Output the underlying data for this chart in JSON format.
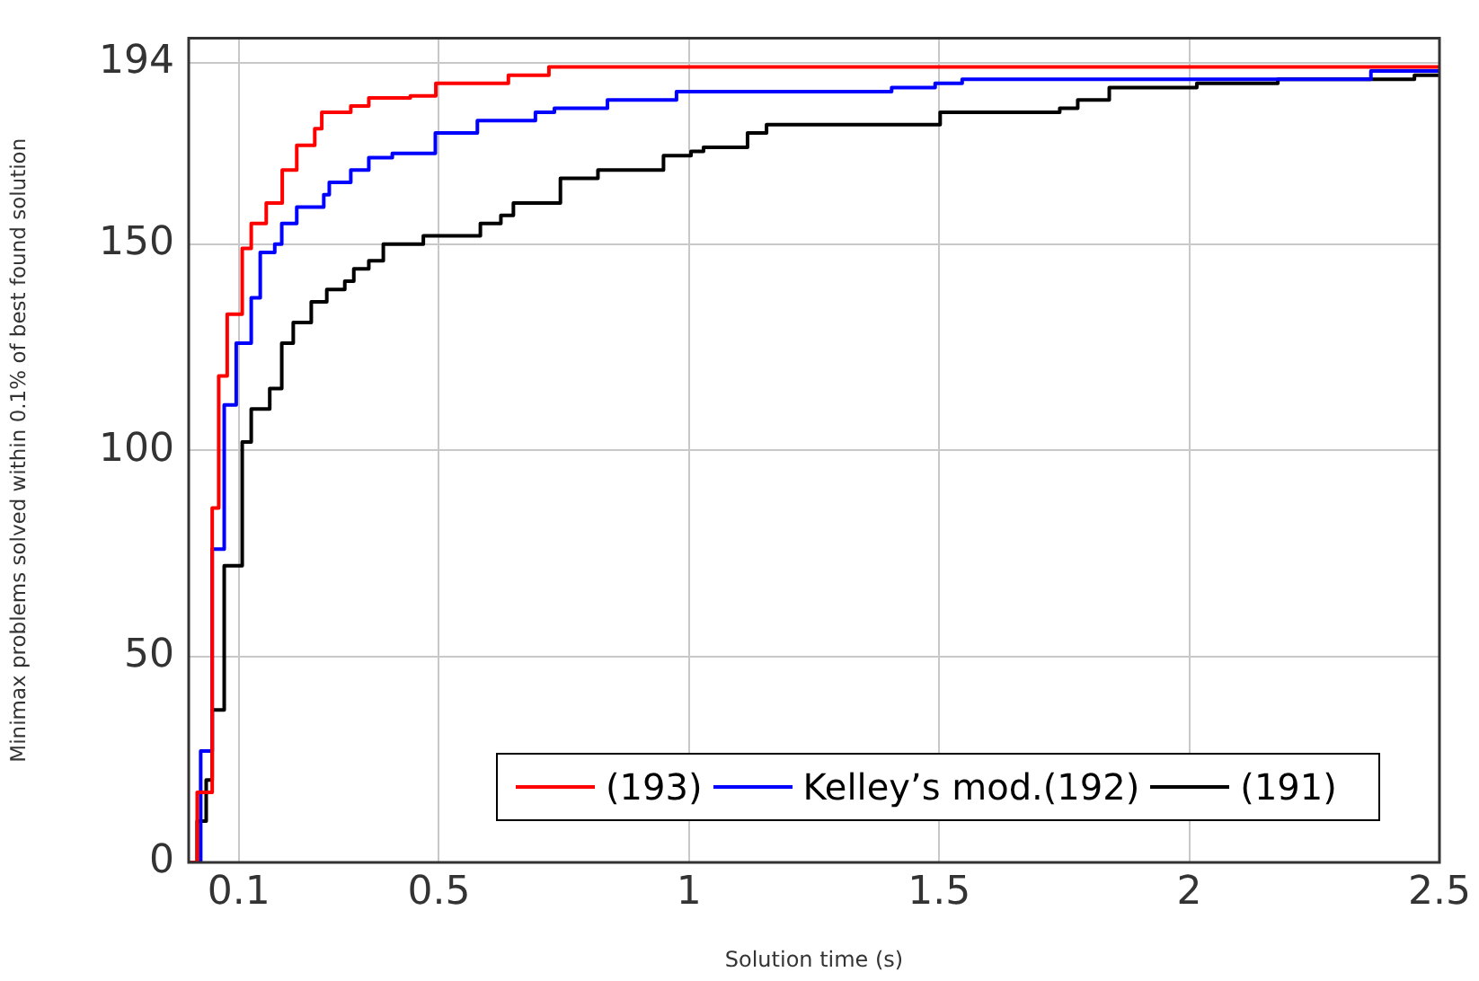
{
  "chart_data": {
    "type": "step",
    "xlabel": "Solution time (s)",
    "ylabel": "Minimax problems solved within 0.1% of best found solution",
    "xlim": [
      0,
      2.5
    ],
    "xticks": [
      0.1,
      0.5,
      1,
      1.5,
      2,
      2.5
    ],
    "ylim": [
      0,
      200
    ],
    "yticks": [
      0,
      50,
      100,
      150,
      194
    ],
    "grid": true,
    "legend": "bottom right",
    "marker": "none",
    "line_style": "solid",
    "series": [
      {
        "name": "(193)",
        "color": "#ff0000",
        "x": [
          0,
          0.017,
          0.047,
          0.06,
          0.077,
          0.107,
          0.125,
          0.155,
          0.187,
          0.216,
          0.252,
          0.266,
          0.324,
          0.36,
          0.443,
          0.494,
          0.639,
          0.72,
          2.5
        ],
        "values": [
          0,
          17,
          86,
          118,
          133,
          149,
          155,
          160,
          168,
          174,
          178,
          182,
          183.5,
          185.5,
          186,
          189,
          191,
          193,
          193
        ]
      },
      {
        "name": "Kelley’s mod.(192)",
        "color": "#0000ff",
        "x": [
          0,
          0.024,
          0.047,
          0.071,
          0.095,
          0.125,
          0.143,
          0.172,
          0.186,
          0.216,
          0.27,
          0.281,
          0.324,
          0.36,
          0.407,
          0.493,
          0.577,
          0.693,
          0.731,
          0.837,
          0.975,
          1.405,
          1.492,
          1.546,
          2.363,
          2.5
        ],
        "values": [
          0,
          27,
          76,
          111,
          126,
          137,
          148,
          150,
          155,
          159,
          162,
          165,
          168,
          171,
          172,
          177,
          180,
          182,
          183,
          185,
          187,
          188,
          189,
          190,
          192,
          192
        ]
      },
      {
        "name": "(191)",
        "color": "#000000",
        "x": [
          0,
          0.017,
          0.035,
          0.047,
          0.071,
          0.107,
          0.125,
          0.162,
          0.186,
          0.209,
          0.245,
          0.276,
          0.312,
          0.33,
          0.36,
          0.389,
          0.469,
          0.583,
          0.624,
          0.649,
          0.743,
          0.818,
          0.949,
          1.004,
          1.029,
          1.117,
          1.155,
          1.502,
          1.741,
          1.777,
          1.84,
          2.015,
          2.177,
          2.45,
          2.5
        ],
        "values": [
          0,
          10,
          20,
          37,
          72,
          102,
          110,
          115,
          126,
          131,
          136,
          139,
          141,
          144,
          146,
          150,
          152,
          155,
          157,
          160,
          166,
          168,
          171.5,
          172.5,
          173.5,
          177,
          179,
          182,
          183,
          185,
          188,
          189,
          190,
          191,
          191
        ]
      }
    ]
  }
}
